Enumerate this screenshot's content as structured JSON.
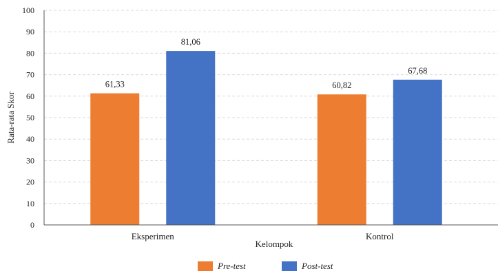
{
  "chart_data": {
    "type": "bar",
    "categories": [
      "Eksperimen",
      "Kontrol"
    ],
    "series": [
      {
        "name": "Pre-test",
        "values": [
          61.33,
          60.82
        ],
        "labels": [
          "61,33",
          "60,82"
        ],
        "color": "#ED7D31"
      },
      {
        "name": "Post-test",
        "values": [
          81.06,
          67.68
        ],
        "labels": [
          "81,06",
          "67,68"
        ],
        "color": "#4472C4"
      }
    ],
    "xlabel": "Kelompok",
    "ylabel": "Rata-rata Skor",
    "ylim": [
      0,
      100
    ],
    "yticks": [
      0,
      10,
      20,
      30,
      40,
      50,
      60,
      70,
      80,
      90,
      100
    ],
    "grid": true,
    "legend_position": "bottom"
  }
}
